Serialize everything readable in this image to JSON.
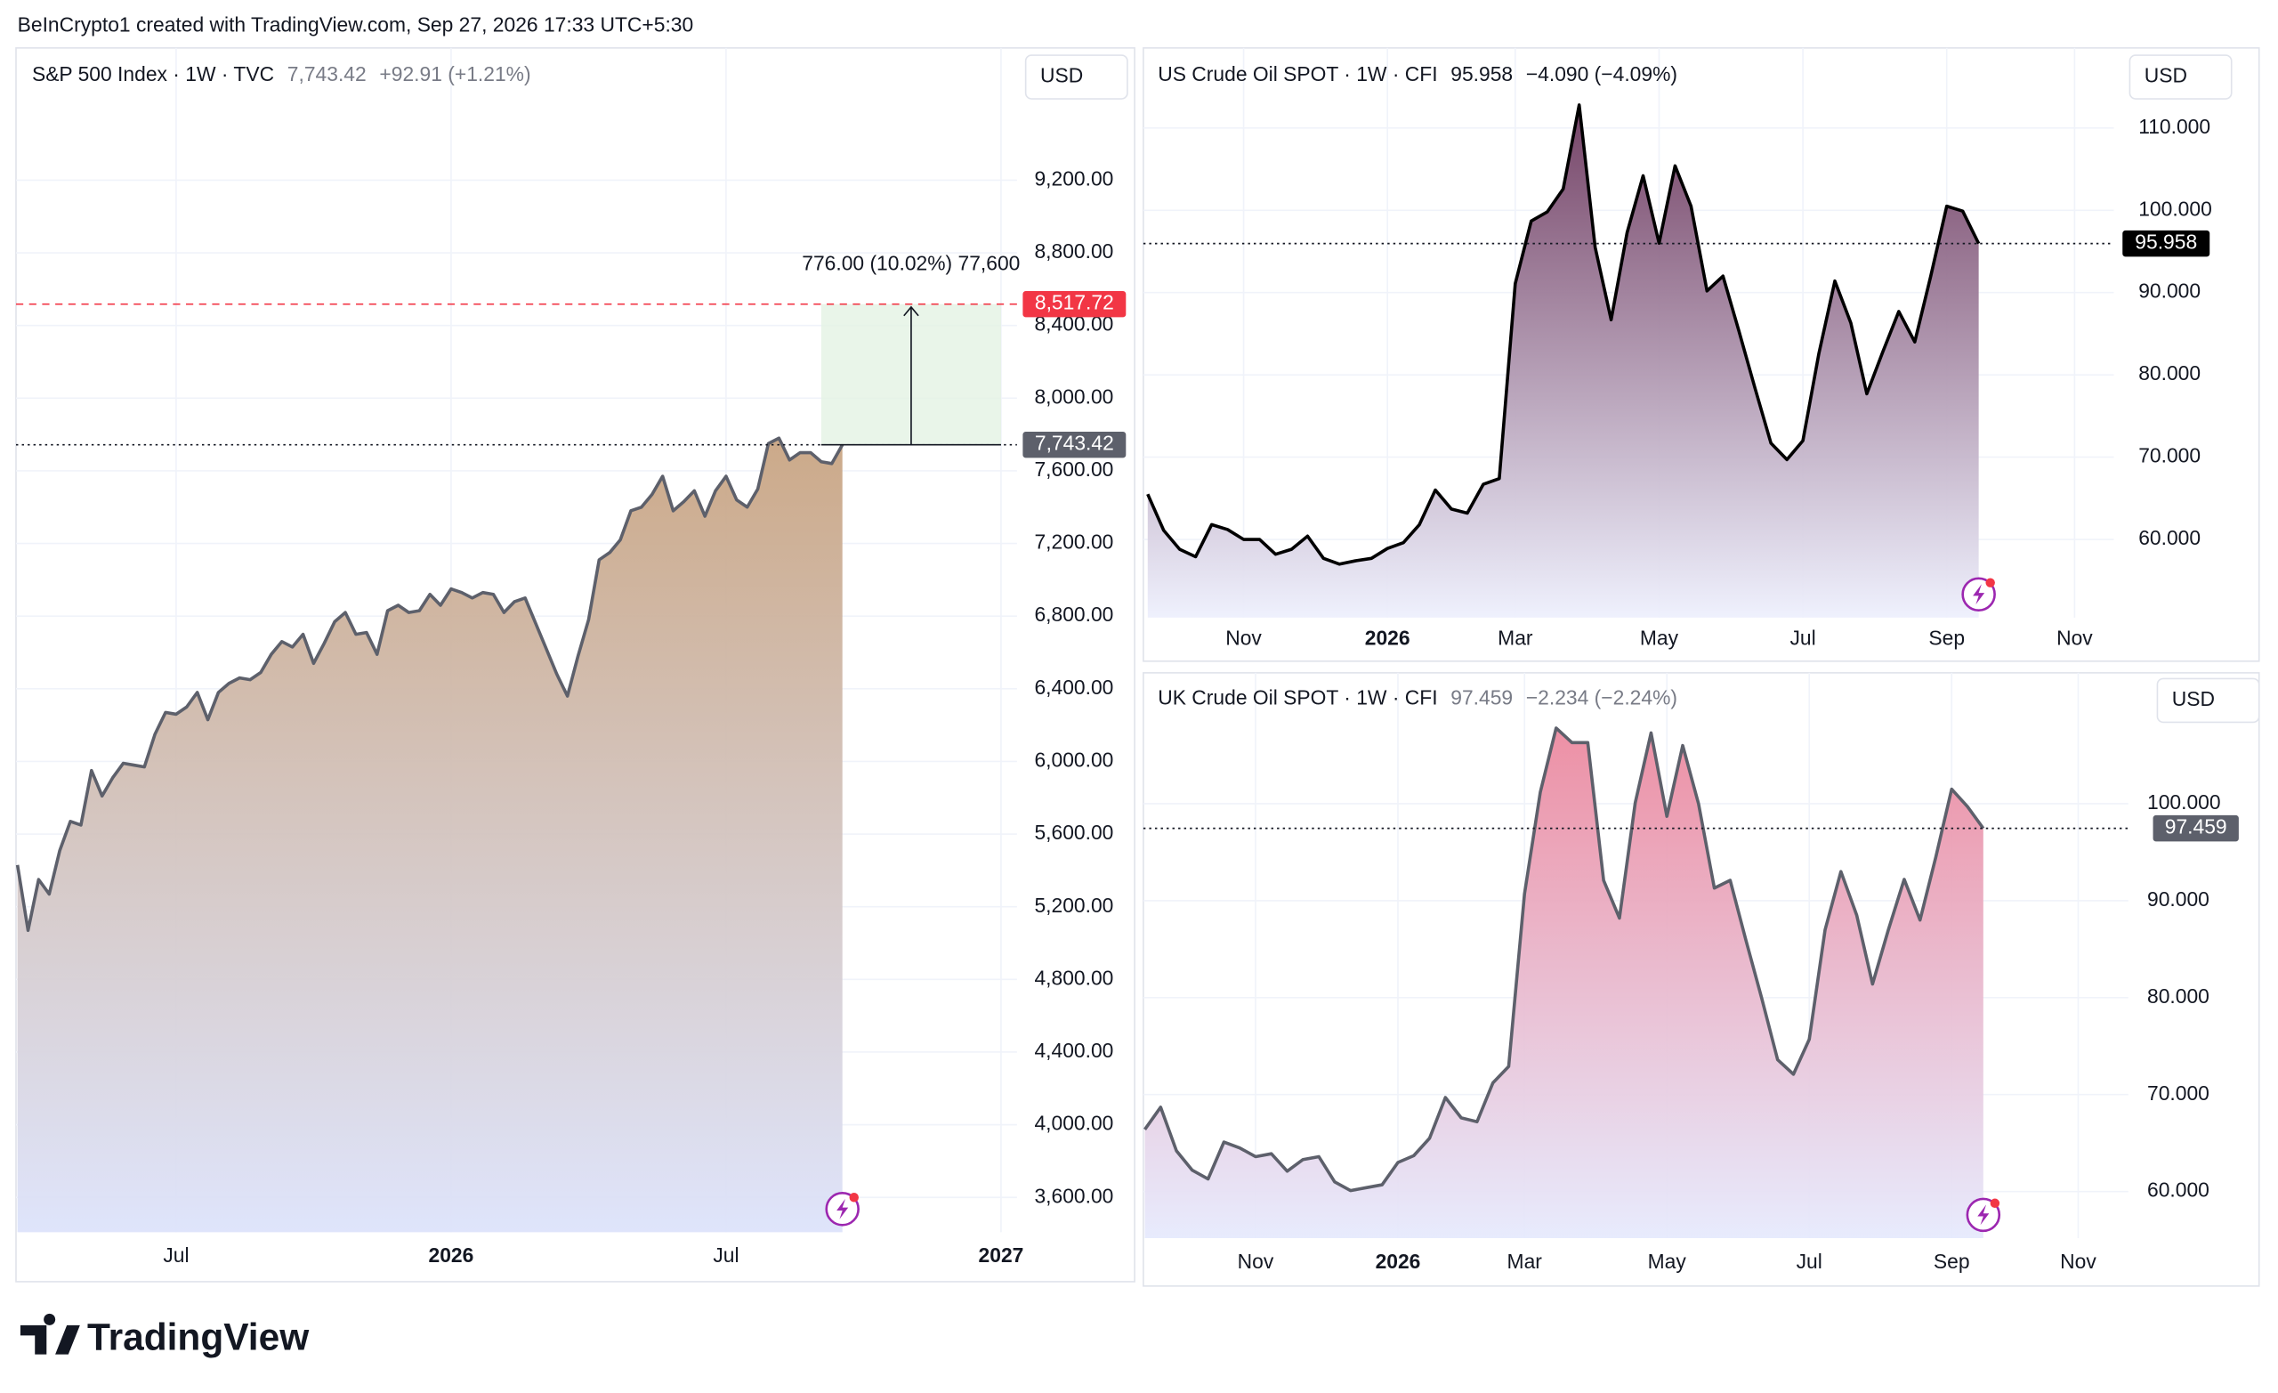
{
  "header": "BeInCrypto1 created with TradingView.com, Sep 27, 2026 17:33 UTC+5:30",
  "footer": "TradingView",
  "chart_data": [
    {
      "type": "area",
      "symbol": "S&P 500 Index · 1W · TVC",
      "price": "7,743.42",
      "change": "+92.91 (+1.21%)",
      "currency": "USD",
      "color": "#5d606b",
      "fill": [
        "#c9a583",
        "#dde3fb"
      ],
      "quote_color": "#787b86",
      "price_color": "#5d606b",
      "categories": [
        null,
        null,
        null,
        null,
        null,
        null,
        null,
        null,
        null,
        null,
        null,
        null,
        null,
        null,
        null,
        "Jul",
        null,
        null,
        null,
        null,
        null,
        null,
        null,
        null,
        null,
        null,
        null,
        null,
        null,
        null,
        null,
        null,
        null,
        null,
        null,
        null,
        null,
        null,
        null,
        null,
        null,
        "2026",
        null,
        null,
        null,
        null,
        null,
        null,
        null,
        null,
        null,
        null,
        null,
        null,
        null,
        null,
        null,
        null,
        null,
        null,
        null,
        null,
        null,
        null,
        null,
        null,
        null,
        "Jul",
        null,
        null,
        null,
        null,
        null,
        null,
        null,
        null,
        null,
        null,
        null,
        null,
        null,
        null,
        null,
        null,
        null,
        null,
        null,
        null,
        null,
        null,
        null,
        null,
        null,
        "2027"
      ],
      "values": [
        5430,
        5070,
        5350,
        5270,
        5510,
        5670,
        5650,
        5950,
        5810,
        5910,
        5990,
        5980,
        5970,
        6150,
        6270,
        6260,
        6300,
        6380,
        6230,
        6380,
        6430,
        6460,
        6450,
        6490,
        6590,
        6660,
        6630,
        6700,
        6540,
        6650,
        6770,
        6820,
        6700,
        6710,
        6590,
        6830,
        6860,
        6820,
        6830,
        6920,
        6860,
        6950,
        6930,
        6900,
        6930,
        6920,
        6820,
        6880,
        6900,
        6760,
        6620,
        6480,
        6360,
        6580,
        6780,
        7110,
        7150,
        7220,
        7380,
        7400,
        7470,
        7570,
        7380,
        7430,
        7490,
        7350,
        7490,
        7570,
        7440,
        7400,
        7500,
        7750,
        7780,
        7660,
        7700,
        7700,
        7650,
        7640,
        7743.42,
        null,
        null,
        null,
        null,
        null,
        null,
        null,
        null,
        null,
        null,
        null,
        null,
        null,
        null,
        null
      ],
      "ylim": [
        3408,
        9920
      ],
      "yticks": [
        {
          "value": 3600,
          "label": "3,600.00"
        },
        {
          "value": 4000,
          "label": "4,000.00"
        },
        {
          "value": 4400,
          "label": "4,400.00"
        },
        {
          "value": 4800,
          "label": "4,800.00"
        },
        {
          "value": 5200,
          "label": "5,200.00"
        },
        {
          "value": 5600,
          "label": "5,600.00"
        },
        {
          "value": 6000,
          "label": "6,000.00"
        },
        {
          "value": 6400,
          "label": "6,400.00"
        },
        {
          "value": 6800,
          "label": "6,800.00"
        },
        {
          "value": 7200,
          "label": "7,200.00"
        },
        {
          "value": 7600,
          "label": "7,600.00"
        },
        {
          "value": 8000,
          "label": "8,000.00"
        },
        {
          "value": 8400,
          "label": "8,400.00"
        },
        {
          "value": 8800,
          "label": "8,800.00"
        },
        {
          "value": 9200,
          "label": "9,200.00"
        }
      ],
      "target": {
        "value": 8517.72,
        "label": "8,517.72"
      },
      "target_color": "#f23645",
      "measure_label": "776.00 (10.02%) 77,600"
    },
    {
      "type": "area",
      "symbol": "US Crude Oil SPOT · 1W · CFI",
      "price": "95.958",
      "change": "−4.090 (−4.09%)",
      "currency": "USD",
      "color": "#000000",
      "fill": [
        "#6e3a5f",
        "#eef0fd"
      ],
      "quote_color": "#131722",
      "price_color": "#000000",
      "categories": [
        null,
        null,
        null,
        null,
        null,
        null,
        "Nov",
        null,
        null,
        null,
        null,
        null,
        null,
        null,
        null,
        "2026",
        null,
        null,
        null,
        null,
        null,
        null,
        null,
        "Mar",
        null,
        null,
        null,
        null,
        null,
        null,
        null,
        null,
        "May",
        null,
        null,
        null,
        null,
        null,
        null,
        null,
        null,
        "Jul",
        null,
        null,
        null,
        null,
        null,
        null,
        null,
        null,
        "Sep",
        null,
        null,
        null,
        null,
        null,
        null,
        null,
        "Nov"
      ],
      "values": [
        65.5,
        61.1,
        58.8,
        57.9,
        61.8,
        61.2,
        60.0,
        60.0,
        58.2,
        58.8,
        60.4,
        57.7,
        57.0,
        57.4,
        57.7,
        58.9,
        59.6,
        61.8,
        66.0,
        63.7,
        63.2,
        66.7,
        67.4,
        91.1,
        98.7,
        99.8,
        102.6,
        112.8,
        95.5,
        86.7,
        97.3,
        104.2,
        96.0,
        105.4,
        100.5,
        90.2,
        92.0,
        85.3,
        78.4,
        71.7,
        69.7,
        72.0,
        82.6,
        91.4,
        86.3,
        77.7,
        82.8,
        87.7,
        84.0,
        92.0,
        100.5,
        99.9,
        95.958,
        null,
        null,
        null,
        null,
        null,
        null
      ],
      "ylim": [
        50.5,
        119.2
      ],
      "yticks": [
        {
          "value": 60,
          "label": "60.000"
        },
        {
          "value": 70,
          "label": "70.000"
        },
        {
          "value": 80,
          "label": "80.000"
        },
        {
          "value": 90,
          "label": "90.000"
        },
        {
          "value": 100,
          "label": "100.000"
        },
        {
          "value": 110,
          "label": "110.000"
        }
      ]
    },
    {
      "type": "area",
      "symbol": "UK Crude Oil SPOT · 1W · CFI",
      "price": "97.459",
      "change": "−2.234 (−2.24%)",
      "currency": "USD",
      "color": "#5d606b",
      "fill": [
        "#ec8aa0",
        "#e6eafd"
      ],
      "quote_color": "#787b86",
      "price_color": "#5d606b",
      "categories": [
        null,
        null,
        null,
        null,
        null,
        null,
        null,
        "Nov",
        null,
        null,
        null,
        null,
        null,
        null,
        null,
        null,
        "2026",
        null,
        null,
        null,
        null,
        null,
        null,
        null,
        "Mar",
        null,
        null,
        null,
        null,
        null,
        null,
        null,
        null,
        "May",
        null,
        null,
        null,
        null,
        null,
        null,
        null,
        null,
        "Jul",
        null,
        null,
        null,
        null,
        null,
        null,
        null,
        null,
        "Sep",
        null,
        null,
        null,
        null,
        null,
        null,
        null,
        "Nov"
      ],
      "values": [
        66.4,
        68.7,
        64.2,
        62.2,
        61.3,
        65.1,
        64.5,
        63.6,
        63.9,
        62.1,
        63.3,
        63.6,
        61.0,
        60.1,
        60.4,
        60.7,
        63.0,
        63.7,
        65.5,
        69.7,
        67.6,
        67.2,
        71.2,
        72.9,
        90.7,
        101.2,
        107.8,
        106.3,
        106.3,
        92.1,
        88.2,
        100.1,
        107.3,
        98.7,
        106.0,
        100.0,
        91.3,
        92.1,
        85.9,
        79.9,
        73.6,
        72.1,
        75.7,
        87.0,
        93.0,
        88.5,
        81.4,
        87.0,
        92.2,
        88.0,
        94.5,
        101.5,
        99.7,
        97.459,
        null,
        null,
        null,
        null,
        null,
        null
      ],
      "ylim": [
        55.2,
        113.2
      ],
      "yticks": [
        {
          "value": 60,
          "label": "60.000"
        },
        {
          "value": 70,
          "label": "70.000"
        },
        {
          "value": 80,
          "label": "80.000"
        },
        {
          "value": 90,
          "label": "90.000"
        },
        {
          "value": 100,
          "label": "100.000"
        }
      ]
    }
  ]
}
